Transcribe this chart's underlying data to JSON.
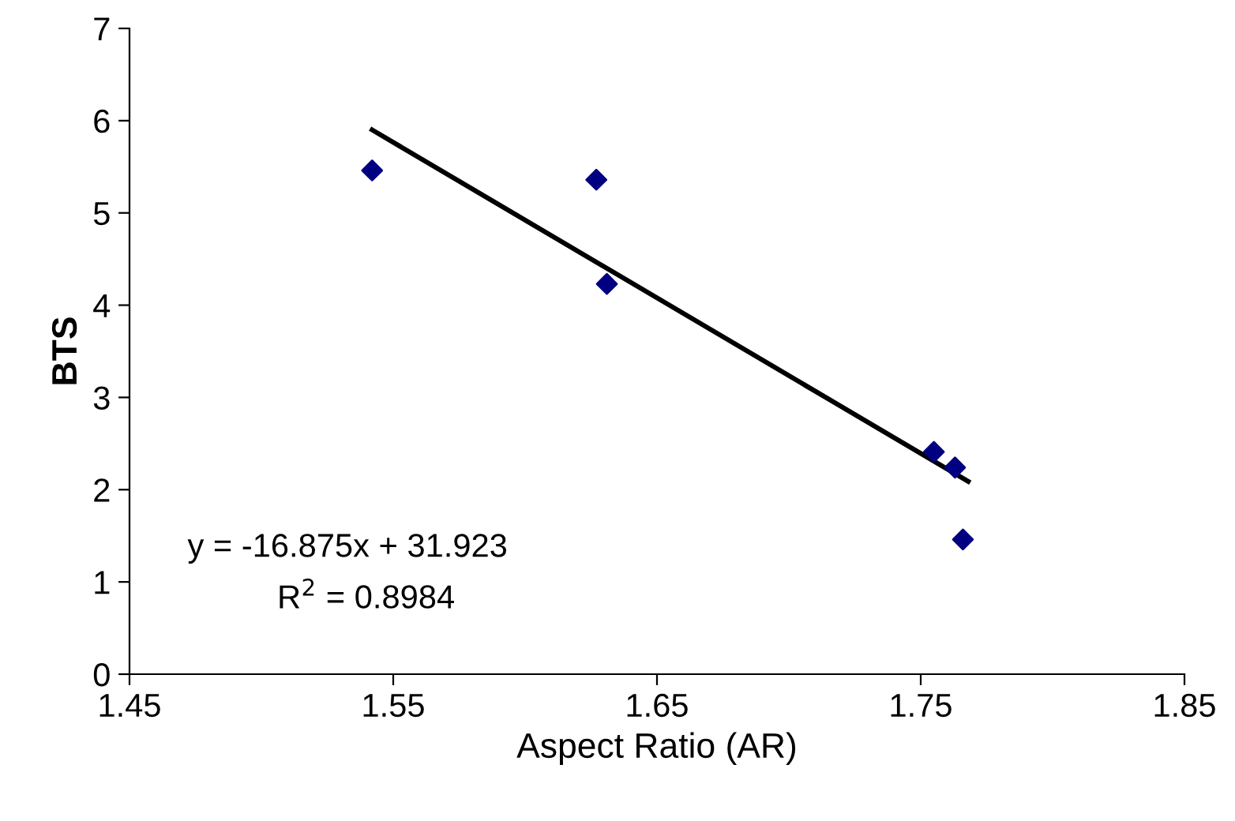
{
  "chart_data": {
    "type": "scatter",
    "xlabel": "Aspect Ratio (AR)",
    "ylabel": "BTS",
    "xlim": [
      1.45,
      1.85
    ],
    "xticks": [
      {
        "value": 1.45,
        "label": "1.45"
      },
      {
        "value": 1.55,
        "label": "1.55"
      },
      {
        "value": 1.65,
        "label": "1.65"
      },
      {
        "value": 1.75,
        "label": "1.75"
      },
      {
        "value": 1.85,
        "label": "1.85"
      }
    ],
    "ylim": [
      0,
      7
    ],
    "yticks": [
      0,
      1,
      2,
      3,
      4,
      5,
      6,
      7
    ],
    "grid": false,
    "marker": "diamond",
    "series": [
      {
        "color": "#000080",
        "x": [
          1.542,
          1.627,
          1.631,
          1.755,
          1.763,
          1.766
        ],
        "values": [
          5.46,
          5.36,
          4.23,
          2.41,
          2.24,
          1.46
        ]
      },
      {
        "type": "line",
        "color": "#000000",
        "marker": "none",
        "line_style": "solid",
        "x": [
          1.542,
          1.768
        ],
        "values": [
          5.9,
          2.09
        ]
      }
    ],
    "annotations": [
      "y = -16.875x + 31.923",
      "R$^{2}$ = 0.8984"
    ]
  }
}
